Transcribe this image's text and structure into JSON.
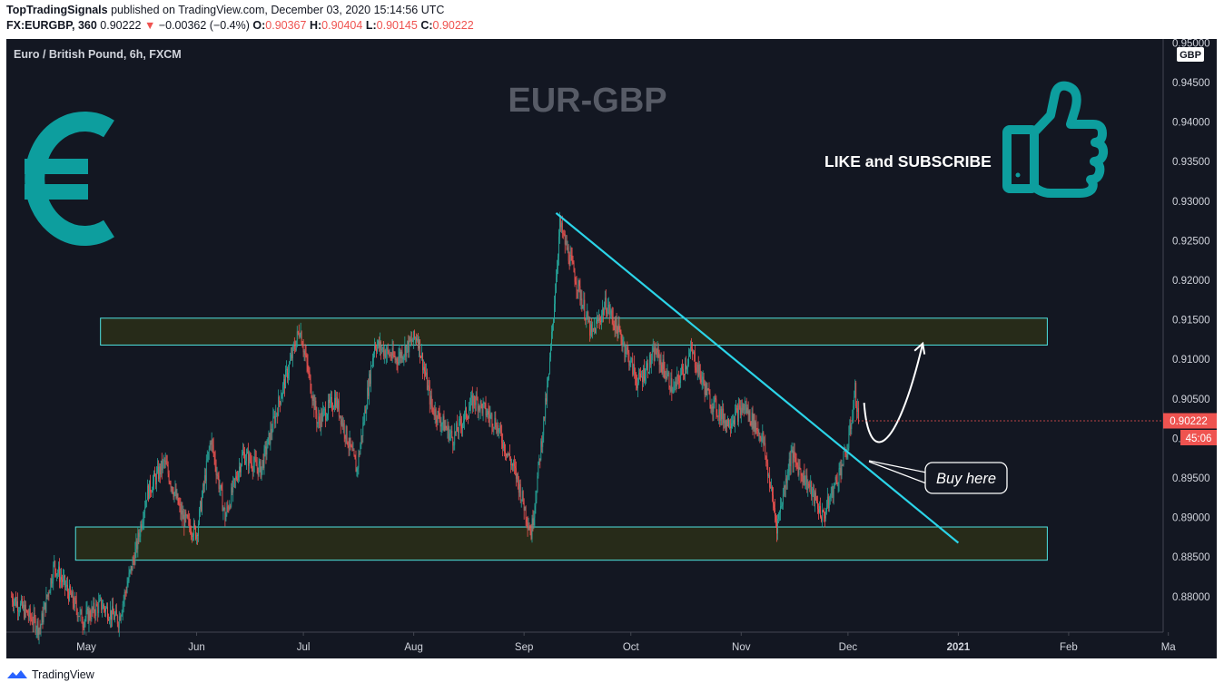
{
  "header": {
    "publisher": "TopTradingSignals",
    "published_text": " published on TradingView.com, December 03, 2020 15:14:56 UTC",
    "symbol": "FX:EURGBP, 360",
    "last": "0.90222",
    "change": "−0.00362 (−0.4%)",
    "o_label": "O:",
    "o_value": "0.90367",
    "h_label": "H:",
    "h_value": "0.90404",
    "l_label": "L:",
    "l_value": "0.90145",
    "c_label": "C:",
    "c_value": "0.90222"
  },
  "chart_data": {
    "type": "candlestick",
    "symbol_title": "Euro / British Pound, 6h, FXCM",
    "watermark": "EUR-GBP",
    "currency": "GBP",
    "x_ticks": [
      "May",
      "Jun",
      "Jul",
      "Aug",
      "Sep",
      "Oct",
      "Nov",
      "Dec",
      "2021",
      "Feb",
      "Ma"
    ],
    "y_ticks": [
      "0.95000",
      "0.94500",
      "0.94000",
      "0.93500",
      "0.93000",
      "0.92500",
      "0.92000",
      "0.91500",
      "0.91000",
      "0.90500",
      "0.90000",
      "0.89500",
      "0.89000",
      "0.88500",
      "0.88000"
    ],
    "ylim": [
      0.8755,
      0.9505
    ],
    "last_price_label": "0.90222",
    "countdown_label": "45:06",
    "price_path": [
      {
        "date": "2020-04-10",
        "close": 0.88
      },
      {
        "date": "2020-04-18",
        "close": 0.876
      },
      {
        "date": "2020-04-22",
        "close": 0.884
      },
      {
        "date": "2020-04-30",
        "close": 0.877
      },
      {
        "date": "2020-05-05",
        "close": 0.879
      },
      {
        "date": "2020-05-10",
        "close": 0.877
      },
      {
        "date": "2020-05-15",
        "close": 0.886
      },
      {
        "date": "2020-05-18",
        "close": 0.893
      },
      {
        "date": "2020-05-23",
        "close": 0.897
      },
      {
        "date": "2020-05-28",
        "close": 0.89
      },
      {
        "date": "2020-06-01",
        "close": 0.888
      },
      {
        "date": "2020-06-05",
        "close": 0.9
      },
      {
        "date": "2020-06-09",
        "close": 0.89
      },
      {
        "date": "2020-06-14",
        "close": 0.898
      },
      {
        "date": "2020-06-19",
        "close": 0.896
      },
      {
        "date": "2020-06-25",
        "close": 0.906
      },
      {
        "date": "2020-06-30",
        "close": 0.914
      },
      {
        "date": "2020-07-05",
        "close": 0.902
      },
      {
        "date": "2020-07-10",
        "close": 0.905
      },
      {
        "date": "2020-07-16",
        "close": 0.896
      },
      {
        "date": "2020-07-21",
        "close": 0.912
      },
      {
        "date": "2020-07-27",
        "close": 0.91
      },
      {
        "date": "2020-08-02",
        "close": 0.913
      },
      {
        "date": "2020-08-06",
        "close": 0.904
      },
      {
        "date": "2020-08-12",
        "close": 0.9
      },
      {
        "date": "2020-08-18",
        "close": 0.905
      },
      {
        "date": "2020-08-24",
        "close": 0.902
      },
      {
        "date": "2020-08-30",
        "close": 0.895
      },
      {
        "date": "2020-09-03",
        "close": 0.888
      },
      {
        "date": "2020-09-08",
        "close": 0.908
      },
      {
        "date": "2020-09-11",
        "close": 0.927
      },
      {
        "date": "2020-09-15",
        "close": 0.921
      },
      {
        "date": "2020-09-20",
        "close": 0.913
      },
      {
        "date": "2020-09-24",
        "close": 0.917
      },
      {
        "date": "2020-09-29",
        "close": 0.912
      },
      {
        "date": "2020-10-03",
        "close": 0.907
      },
      {
        "date": "2020-10-08",
        "close": 0.911
      },
      {
        "date": "2020-10-13",
        "close": 0.906
      },
      {
        "date": "2020-10-18",
        "close": 0.911
      },
      {
        "date": "2020-10-23",
        "close": 0.905
      },
      {
        "date": "2020-10-28",
        "close": 0.902
      },
      {
        "date": "2020-11-02",
        "close": 0.904
      },
      {
        "date": "2020-11-07",
        "close": 0.9
      },
      {
        "date": "2020-11-11",
        "close": 0.889
      },
      {
        "date": "2020-11-15",
        "close": 0.898
      },
      {
        "date": "2020-11-20",
        "close": 0.894
      },
      {
        "date": "2020-11-24",
        "close": 0.89
      },
      {
        "date": "2020-11-28",
        "close": 0.895
      },
      {
        "date": "2020-12-01",
        "close": 0.899
      },
      {
        "date": "2020-12-03",
        "close": 0.906
      },
      {
        "date": "2020-12-04",
        "close": 0.9022
      }
    ],
    "zones": [
      {
        "name": "resistance",
        "from_date": "2020-05-05",
        "to_date": "2021-01-26",
        "low": 0.9118,
        "high": 0.9152
      },
      {
        "name": "support",
        "from_date": "2020-04-28",
        "to_date": "2021-01-26",
        "low": 0.8846,
        "high": 0.8888
      }
    ],
    "trendline": {
      "start_date": "2020-09-10",
      "start_price": 0.9285,
      "end_date": "2021-01-01",
      "end_price": 0.8868
    },
    "projection_arrow": {
      "start_date": "2020-12-04",
      "target_date": "2020-12-22",
      "target_price": 0.912
    },
    "annotations": {
      "like": "LIKE and SUBSCRIBE",
      "buy": "Buy here"
    },
    "colors": {
      "background": "#131722",
      "up": "#26a69a",
      "down": "#ef5350",
      "trendline": "#2bd4e8",
      "zone_fill": "#2a2d18",
      "zone_border": "#4fe3e0",
      "euro_icon": "#0d9e9e",
      "thumb_icon": "#0d9e9e",
      "price_badge": "#ef5350",
      "watermark": "#575b66",
      "axis_text": "#d1d4dc"
    }
  },
  "footer": {
    "brand": "TradingView"
  }
}
